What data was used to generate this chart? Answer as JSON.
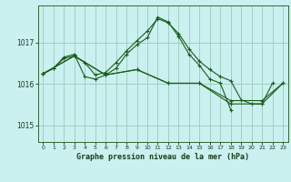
{
  "title": "Graphe pression niveau de la mer (hPa)",
  "background_color": "#caf0f0",
  "grid_color": "#99ccbb",
  "line_color": "#1a5c1a",
  "xlim": [
    -0.5,
    23.5
  ],
  "ylim": [
    1014.6,
    1017.9
  ],
  "yticks": [
    1015,
    1016,
    1017
  ],
  "xtick_labels": [
    "0",
    "1",
    "2",
    "3",
    "4",
    "5",
    "6",
    "7",
    "8",
    "9",
    "10",
    "11",
    "12",
    "13",
    "14",
    "15",
    "16",
    "17",
    "18",
    "19",
    "20",
    "21",
    "22",
    "23"
  ],
  "series": [
    {
      "x": [
        0,
        1,
        2,
        3,
        4,
        5,
        6,
        7,
        8,
        9,
        10,
        11,
        12,
        13,
        14,
        15,
        16,
        17,
        18,
        19,
        20,
        21,
        22
      ],
      "y": [
        1016.25,
        1016.38,
        1016.62,
        1016.68,
        1016.52,
        1016.22,
        1016.28,
        1016.52,
        1016.8,
        1017.05,
        1017.28,
        1017.58,
        1017.48,
        1017.22,
        1016.85,
        1016.55,
        1016.35,
        1016.18,
        1016.08,
        1015.62,
        1015.52,
        1015.52,
        1016.02
      ]
    },
    {
      "x": [
        0,
        1,
        2,
        3,
        4,
        5,
        6,
        7,
        8,
        9,
        10,
        11,
        12,
        13,
        14,
        15,
        16,
        17,
        18
      ],
      "y": [
        1016.25,
        1016.38,
        1016.65,
        1016.72,
        1016.18,
        1016.12,
        1016.22,
        1016.38,
        1016.72,
        1016.95,
        1017.12,
        1017.62,
        1017.5,
        1017.15,
        1016.72,
        1016.45,
        1016.12,
        1016.02,
        1015.38
      ]
    },
    {
      "x": [
        0,
        3,
        6,
        9,
        12,
        15,
        18,
        21,
        23
      ],
      "y": [
        1016.25,
        1016.68,
        1016.22,
        1016.35,
        1016.02,
        1016.02,
        1015.6,
        1015.6,
        1016.02
      ]
    },
    {
      "x": [
        0,
        3,
        6,
        9,
        12,
        15,
        18,
        21,
        23
      ],
      "y": [
        1016.25,
        1016.68,
        1016.22,
        1016.35,
        1016.02,
        1016.02,
        1015.52,
        1015.52,
        1016.02
      ]
    }
  ]
}
